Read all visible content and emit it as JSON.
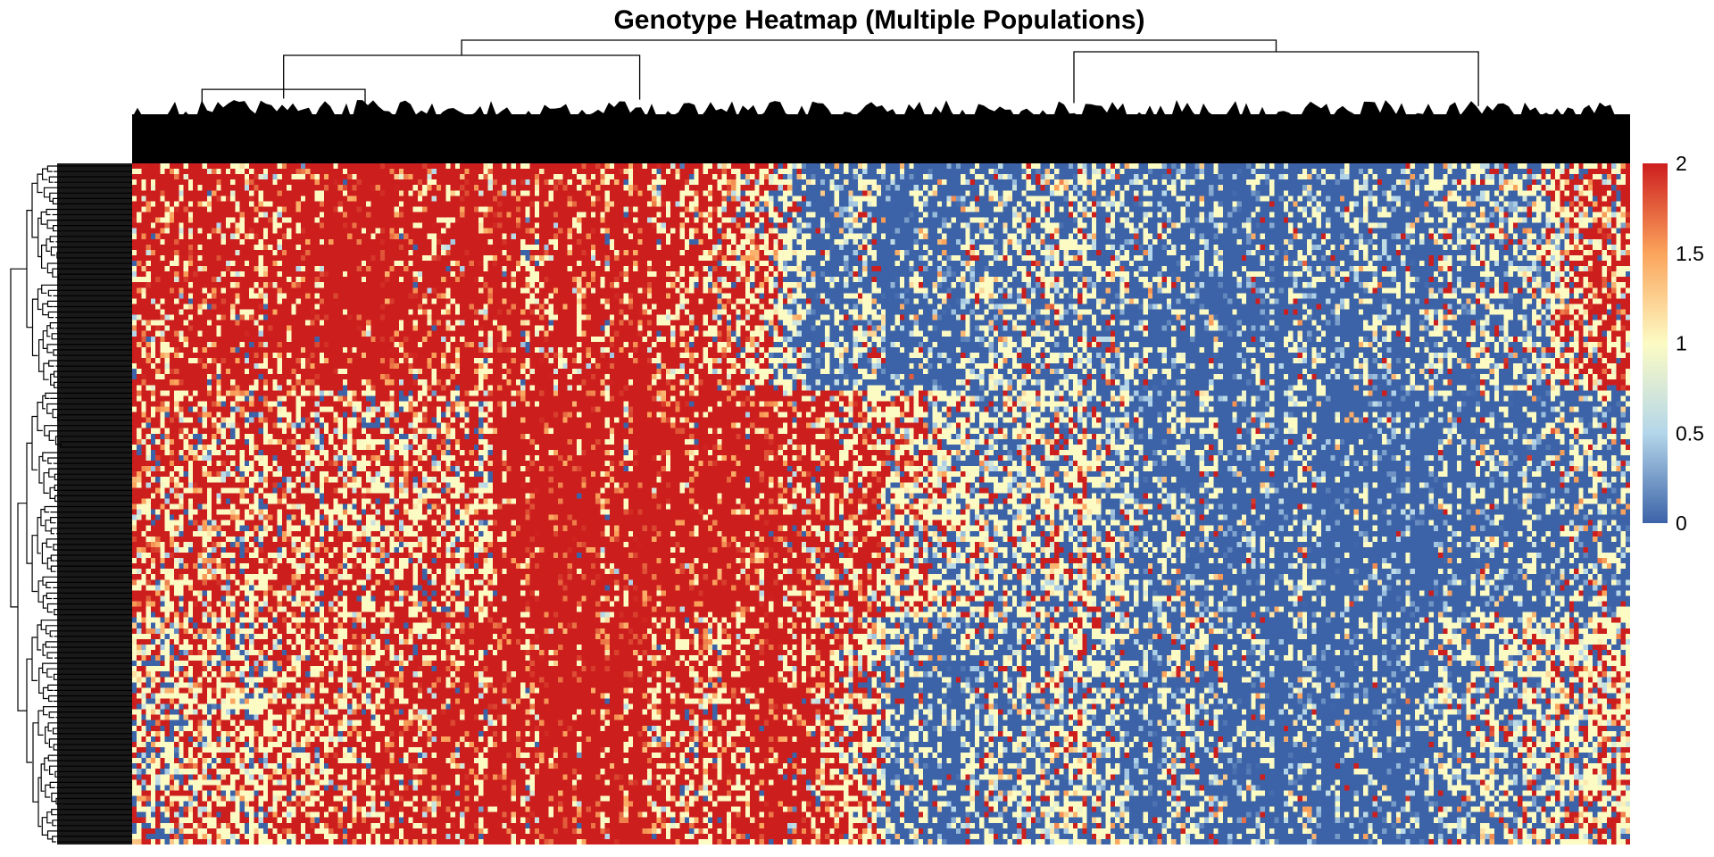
{
  "chart_data": {
    "type": "heatmap",
    "title": "Genotype Heatmap (Multiple Populations)",
    "xlabel": "",
    "ylabel": "",
    "value_range": [
      0,
      2
    ],
    "color_scale": {
      "stops": [
        {
          "value": 0,
          "color": "#3c63a8"
        },
        {
          "value": 0.5,
          "color": "#b4d6ea"
        },
        {
          "value": 1,
          "color": "#fcfbc4"
        },
        {
          "value": 1.5,
          "color": "#fba45c"
        },
        {
          "value": 2,
          "color": "#cd1e1e"
        }
      ]
    },
    "legend": {
      "placement": "right",
      "ticks": [
        "0",
        "0.5",
        "1",
        "1.5",
        "2"
      ]
    },
    "column_dendrogram": true,
    "row_dendrogram": true,
    "row_groups": [
      {
        "rows": 42,
        "profile": [
          1.65,
          1.7,
          1.85,
          1.7,
          1.9,
          1.95,
          1.8,
          1.85,
          1.75,
          1.7,
          1.75,
          1.7,
          1.6,
          1.4,
          0.3,
          0.4,
          0.2,
          0.3,
          0.6,
          0.5,
          0.55,
          0.4,
          0.2,
          0.15,
          0.2,
          0.25,
          0.3,
          0.4,
          0.5,
          0.6,
          1.5,
          1.6
        ]
      },
      {
        "rows": 42,
        "profile": [
          1.6,
          1.5,
          1.55,
          1.5,
          1.45,
          1.4,
          1.45,
          1.4,
          1.95,
          1.95,
          1.8,
          1.95,
          1.95,
          1.9,
          1.6,
          1.55,
          1.2,
          0.8,
          0.7,
          0.8,
          0.75,
          0.3,
          0.4,
          0.2,
          0.25,
          0.1,
          0.12,
          0.15,
          0.3,
          0.25,
          0.5,
          0.4
        ]
      },
      {
        "rows": 42,
        "profile": [
          0.9,
          1.2,
          1.3,
          1.4,
          1.5,
          1.6,
          1.7,
          1.75,
          1.85,
          1.9,
          1.95,
          1.6,
          1.55,
          1.9,
          1.7,
          1.3,
          0.4,
          0.3,
          0.6,
          0.55,
          0.8,
          0.2,
          0.6,
          0.3,
          0.1,
          0.1,
          0.15,
          0.4,
          0.5,
          0.8,
          1.1,
          1.2
        ]
      }
    ]
  }
}
